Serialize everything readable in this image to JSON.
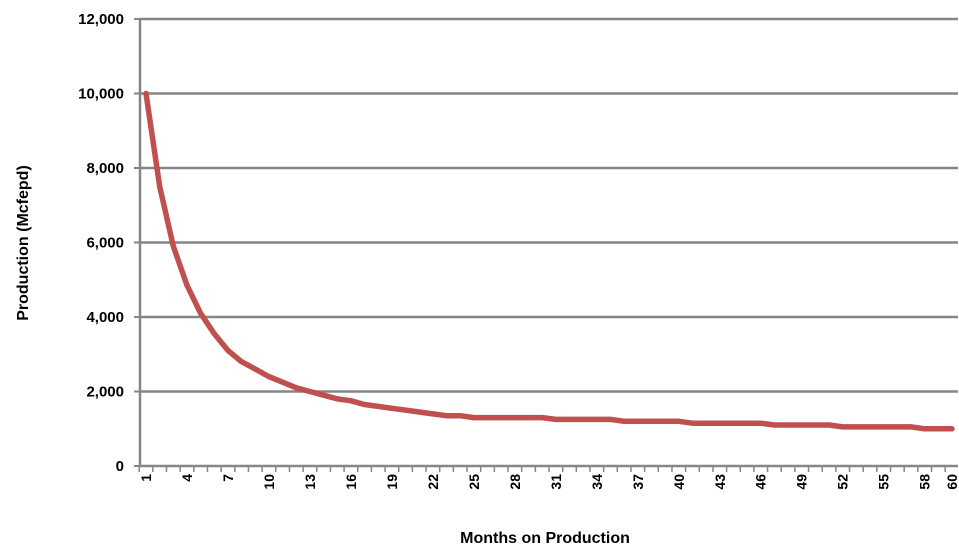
{
  "chart_data": {
    "type": "line",
    "title": "",
    "xlabel": "Months on Production",
    "ylabel": "Production (Mcfepd)",
    "ylim": [
      0,
      12000
    ],
    "yticks": [
      "0",
      "2,000",
      "4,000",
      "6,000",
      "8,000",
      "10,000",
      "12,000"
    ],
    "ytick_values": [
      0,
      2000,
      4000,
      6000,
      8000,
      10000,
      12000
    ],
    "xticks": [
      "1",
      "4",
      "7",
      "10",
      "13",
      "16",
      "19",
      "22",
      "25",
      "28",
      "31",
      "34",
      "37",
      "40",
      "43",
      "46",
      "49",
      "52",
      "55",
      "58",
      "60"
    ],
    "xtick_values": [
      1,
      4,
      7,
      10,
      13,
      16,
      19,
      22,
      25,
      28,
      31,
      34,
      37,
      40,
      43,
      46,
      49,
      52,
      55,
      58,
      60
    ],
    "x_range": [
      1,
      60
    ],
    "grid": true,
    "legend": "none",
    "colors": {
      "line": "#c0504d",
      "grid": "#868686",
      "axis": "#868686"
    },
    "series": [
      {
        "x": [
          1,
          2,
          3,
          4,
          5,
          6,
          7,
          8,
          9,
          10,
          11,
          12,
          13,
          14,
          15,
          16,
          17,
          18,
          19,
          20,
          21,
          22,
          23,
          24,
          25,
          26,
          27,
          28,
          29,
          30,
          31,
          32,
          33,
          34,
          35,
          36,
          37,
          38,
          39,
          40,
          41,
          42,
          43,
          44,
          45,
          46,
          47,
          48,
          49,
          50,
          51,
          52,
          53,
          54,
          55,
          56,
          57,
          58,
          59,
          60
        ],
        "values": [
          10000,
          7500,
          5900,
          4850,
          4100,
          3550,
          3100,
          2800,
          2600,
          2400,
          2250,
          2100,
          2000,
          1900,
          1800,
          1750,
          1650,
          1600,
          1550,
          1500,
          1450,
          1400,
          1350,
          1350,
          1300,
          1300,
          1300,
          1300,
          1300,
          1300,
          1250,
          1250,
          1250,
          1250,
          1250,
          1200,
          1200,
          1200,
          1200,
          1200,
          1150,
          1150,
          1150,
          1150,
          1150,
          1150,
          1100,
          1100,
          1100,
          1100,
          1100,
          1050,
          1050,
          1050,
          1050,
          1050,
          1050,
          1000,
          1000,
          1000
        ]
      }
    ]
  }
}
